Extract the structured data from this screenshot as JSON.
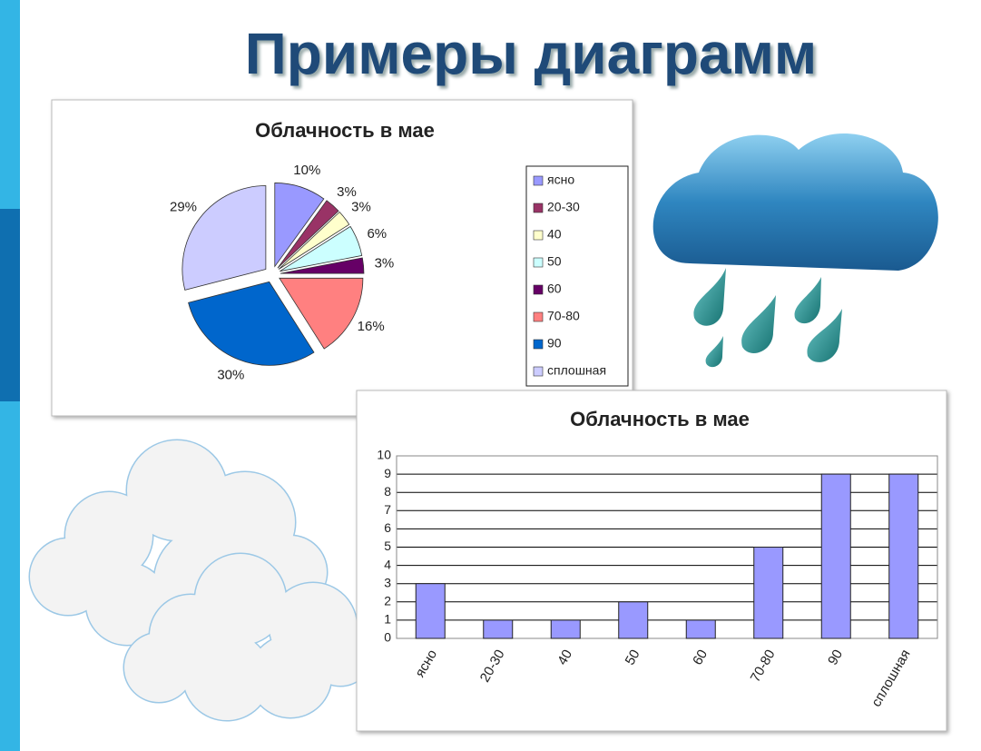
{
  "title": "Примеры диаграмм",
  "chart_data": [
    {
      "type": "pie",
      "title": "Облачность в мае",
      "categories": [
        "ясно",
        "20-30",
        "40",
        "50",
        "60",
        "70-80",
        "90",
        "сплошная"
      ],
      "values": [
        10,
        3,
        3,
        6,
        3,
        16,
        30,
        29
      ],
      "value_labels": [
        "10%",
        "3%",
        "3%",
        "6%",
        "3%",
        "16%",
        "30%",
        "29%"
      ],
      "colors": [
        "#9999ff",
        "#993366",
        "#ffffcc",
        "#ccffff",
        "#660066",
        "#ff8080",
        "#0066cc",
        "#ccccff"
      ],
      "legend": "right"
    },
    {
      "type": "bar",
      "title": "Облачность в мае",
      "categories": [
        "ясно",
        "20-30",
        "40",
        "50",
        "60",
        "70-80",
        "90",
        "сплошная"
      ],
      "values": [
        3,
        1,
        1,
        2,
        1,
        5,
        9,
        9
      ],
      "color": "#9999ff",
      "ylim": [
        0,
        10
      ],
      "yticks": [
        0,
        1,
        2,
        3,
        4,
        5,
        6,
        7,
        8,
        9,
        10
      ],
      "grid": true
    }
  ]
}
